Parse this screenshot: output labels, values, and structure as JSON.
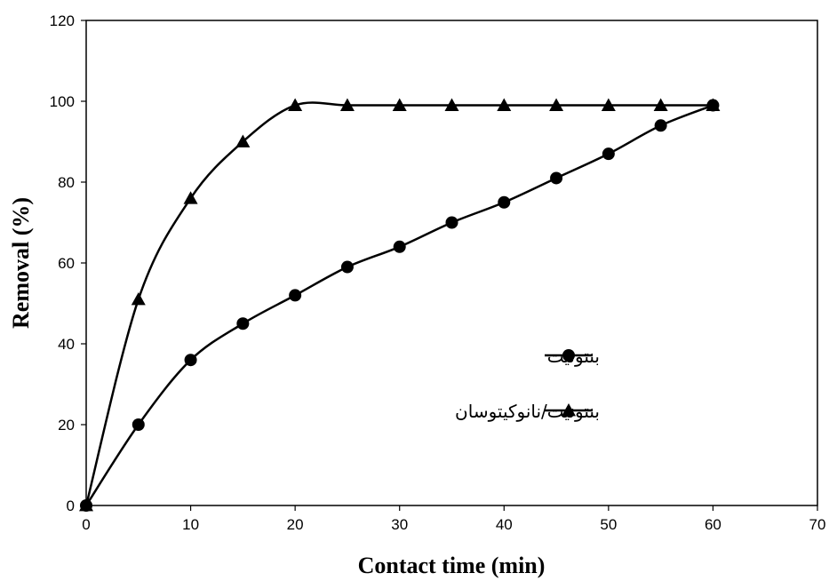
{
  "chart_data": {
    "type": "line",
    "xlabel": "Contact time (min)",
    "ylabel": "Removal (%)",
    "xlim": [
      0,
      70
    ],
    "ylim": [
      0,
      120
    ],
    "xticks": [
      0,
      10,
      20,
      30,
      40,
      50,
      60,
      70
    ],
    "yticks": [
      0,
      20,
      40,
      60,
      80,
      100,
      120
    ],
    "grid": false,
    "legend_position": "right",
    "series": [
      {
        "name": "بنتونیت",
        "marker": "circle",
        "color": "#000000",
        "x": [
          0,
          5,
          10,
          15,
          20,
          25,
          30,
          35,
          40,
          45,
          50,
          55,
          60
        ],
        "y": [
          0,
          20,
          36,
          45,
          52,
          59,
          64,
          70,
          75,
          81,
          87,
          94,
          99
        ]
      },
      {
        "name": "بنتونیت/نانوکیتوسان",
        "marker": "triangle",
        "color": "#000000",
        "x": [
          0,
          5,
          10,
          15,
          20,
          25,
          30,
          35,
          40,
          45,
          50,
          55,
          60
        ],
        "y": [
          0,
          51,
          76,
          90,
          99,
          99,
          99,
          99,
          99,
          99,
          99,
          99,
          99
        ]
      }
    ]
  }
}
